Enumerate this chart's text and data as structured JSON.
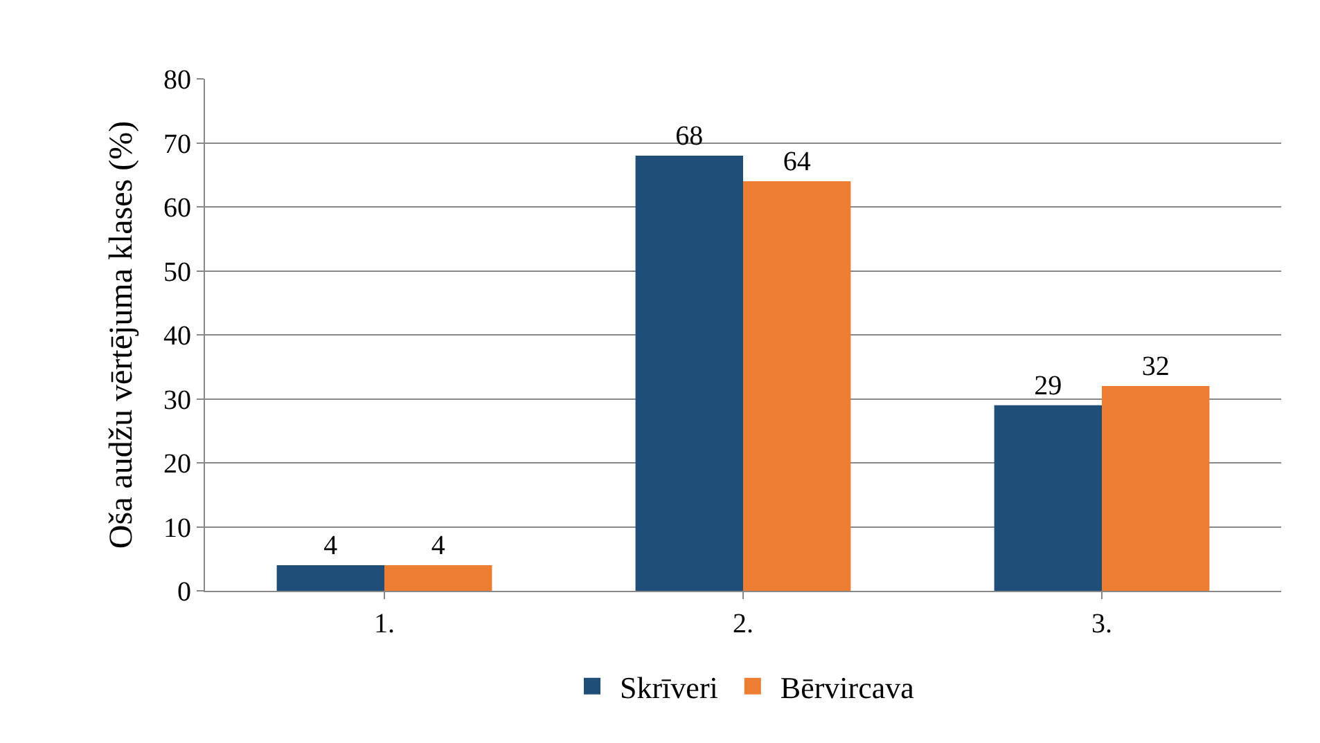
{
  "chart_data": {
    "type": "bar",
    "ylabel": "Oša audžu vērtējuma klases (%)",
    "categories": [
      "1.",
      "2.",
      "3."
    ],
    "series": [
      {
        "name": "Skrīveri",
        "color": "#1f4e79",
        "values": [
          4,
          68,
          29
        ]
      },
      {
        "name": "Bērvircava",
        "color": "#ed7d31",
        "values": [
          4,
          64,
          32
        ]
      }
    ],
    "ylim": [
      0,
      80
    ],
    "yticks": [
      0,
      10,
      20,
      30,
      40,
      50,
      60,
      70,
      80
    ],
    "grid": "y",
    "legend": "bottom",
    "data_labels": true
  }
}
